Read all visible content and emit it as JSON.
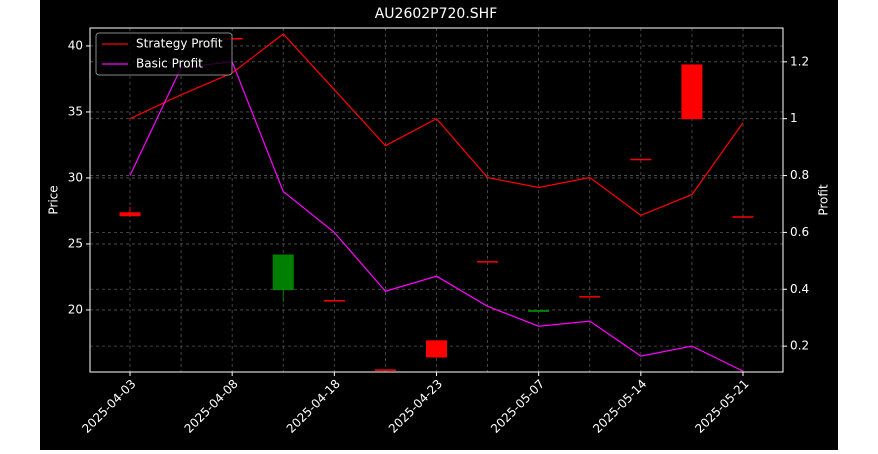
{
  "chart_data": {
    "type": "candlestick",
    "title": "AU2602P720.SHF",
    "y_label": "Price",
    "y2_label": "Profit",
    "categories": [
      "2025-04-03",
      null,
      "2025-04-08",
      null,
      "2025-04-18",
      null,
      "2025-04-23",
      null,
      "2025-05-07",
      null,
      "2025-05-14",
      null,
      "2025-05-21"
    ],
    "open": [
      27.4,
      null,
      40.6,
      21.5,
      20.75,
      15.5,
      17.7,
      23.7,
      19.85,
      21.05,
      31.45,
      38.6,
      27.1
    ],
    "high": [
      27.8,
      null,
      40.6,
      24.2,
      20.75,
      15.5,
      17.7,
      23.7,
      20.0,
      21.05,
      31.45,
      38.6,
      27.1
    ],
    "low": [
      27.1,
      null,
      40.6,
      20.6,
      20.75,
      15.5,
      16.4,
      23.7,
      19.85,
      21.05,
      31.45,
      34.45,
      27.1
    ],
    "close": [
      27.1,
      null,
      40.6,
      24.2,
      20.75,
      15.5,
      16.4,
      23.7,
      20.0,
      21.05,
      31.45,
      34.45,
      27.1
    ],
    "up_color": "#008000",
    "down_color": "#ff0000",
    "series": [
      {
        "name": "Strategy Profit",
        "color": "#ff0000",
        "axis": "y2",
        "values": [
          1.0,
          1.084,
          1.161,
          1.298,
          1.102,
          0.905,
          1.0,
          0.793,
          0.758,
          0.793,
          0.66,
          0.733,
          0.986
        ]
      },
      {
        "name": "Basic Profit",
        "color": "#ff00ff",
        "axis": "y2",
        "values": [
          0.8,
          1.179,
          1.2,
          0.744,
          0.6,
          0.393,
          0.446,
          0.34,
          0.27,
          0.288,
          0.165,
          0.2,
          0.112
        ]
      }
    ],
    "ylim": [
      15.3,
      41.36
    ],
    "yticks": [
      20,
      25,
      30,
      35,
      40
    ],
    "y2lim": [
      0.109,
      1.319
    ],
    "y2ticks": [
      0.2,
      0.4,
      0.6,
      0.8,
      1.0,
      1.2
    ],
    "grid": true,
    "legend": "upper-left"
  }
}
